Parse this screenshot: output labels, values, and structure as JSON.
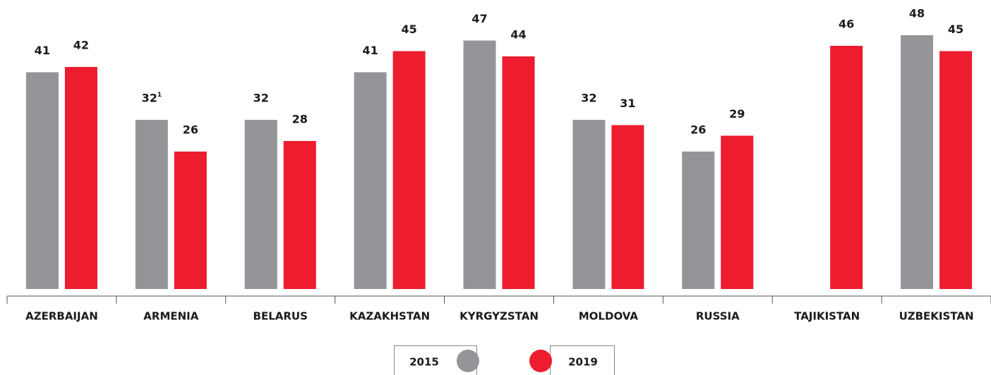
{
  "chart_data": {
    "type": "bar",
    "categories": [
      "AZERBAIJAN",
      "ARMENIA",
      "BELARUS",
      "KAZAKHSTAN",
      "KYRGYZSTAN",
      "MOLDOVA",
      "RUSSIA",
      "TAJIKISTAN",
      "UZBEKISTAN"
    ],
    "series": [
      {
        "name": "2015",
        "color": "#939598",
        "values": [
          41,
          32,
          32,
          41,
          47,
          32,
          26,
          null,
          48
        ]
      },
      {
        "name": "2019",
        "color": "#ed1c2e",
        "values": [
          42,
          26,
          28,
          45,
          44,
          31,
          29,
          46,
          45
        ]
      }
    ],
    "annotations": [
      {
        "text": "1",
        "series": 0,
        "index": 1
      }
    ],
    "ylim": [
      0,
      48
    ]
  }
}
